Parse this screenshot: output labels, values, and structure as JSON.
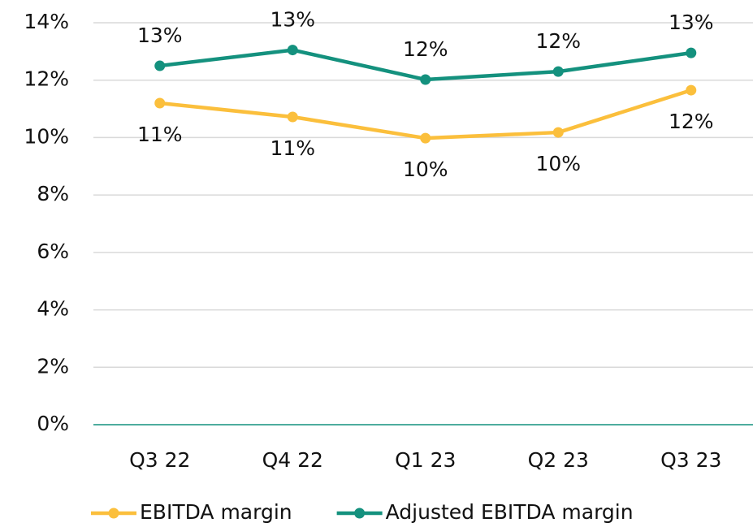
{
  "chart_data": {
    "type": "line",
    "categories": [
      "Q3 22",
      "Q4 22",
      "Q1 23",
      "Q2 23",
      "Q3 23"
    ],
    "series": [
      {
        "name": "EBITDA margin",
        "color": "#fbbf3c",
        "values": [
          11.2,
          10.72,
          9.98,
          10.18,
          11.65
        ],
        "value_labels": [
          "11%",
          "11%",
          "10%",
          "10%",
          "12%"
        ]
      },
      {
        "name": "Adjusted EBITDA margin",
        "color": "#14917e",
        "values": [
          12.5,
          13.05,
          12.02,
          12.3,
          12.95
        ],
        "value_labels": [
          "13%",
          "13%",
          "12%",
          "12%",
          "13%"
        ]
      }
    ],
    "ylim": [
      0,
      14
    ],
    "yticks": [
      {
        "value": 0,
        "label": "0%"
      },
      {
        "value": 2,
        "label": "2%"
      },
      {
        "value": 4,
        "label": "4%"
      },
      {
        "value": 6,
        "label": "6%"
      },
      {
        "value": 8,
        "label": "8%"
      },
      {
        "value": 10,
        "label": "10%"
      },
      {
        "value": 12,
        "label": "12%"
      },
      {
        "value": 14,
        "label": "14%"
      }
    ],
    "grid": true,
    "legend": "bottom"
  }
}
